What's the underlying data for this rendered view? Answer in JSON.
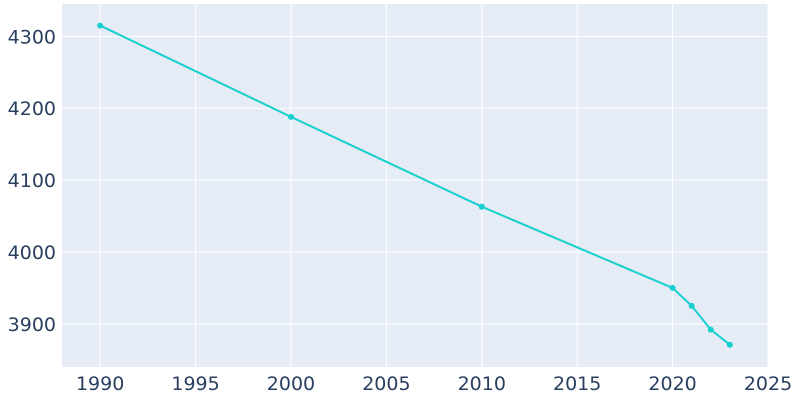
{
  "chart_data": {
    "type": "line",
    "title": "",
    "xlabel": "",
    "ylabel": "",
    "xlim": [
      1988,
      2025
    ],
    "ylim": [
      3840,
      4345
    ],
    "x_ticks": [
      1990,
      1995,
      2000,
      2005,
      2010,
      2015,
      2020,
      2025
    ],
    "y_ticks": [
      3900,
      4000,
      4100,
      4200,
      4300
    ],
    "grid": true,
    "legend": "none",
    "colors": {
      "line": "#17cfcf",
      "plot_bg": "#e5ecf6",
      "grid": "#ffffff",
      "text": "#2a3f5f"
    },
    "series": [
      {
        "x": [
          1990,
          2000,
          2010,
          2020,
          2021,
          2022,
          2023
        ],
        "y": [
          4315,
          4188,
          4063,
          3950,
          3925,
          3892,
          3871
        ]
      }
    ]
  }
}
